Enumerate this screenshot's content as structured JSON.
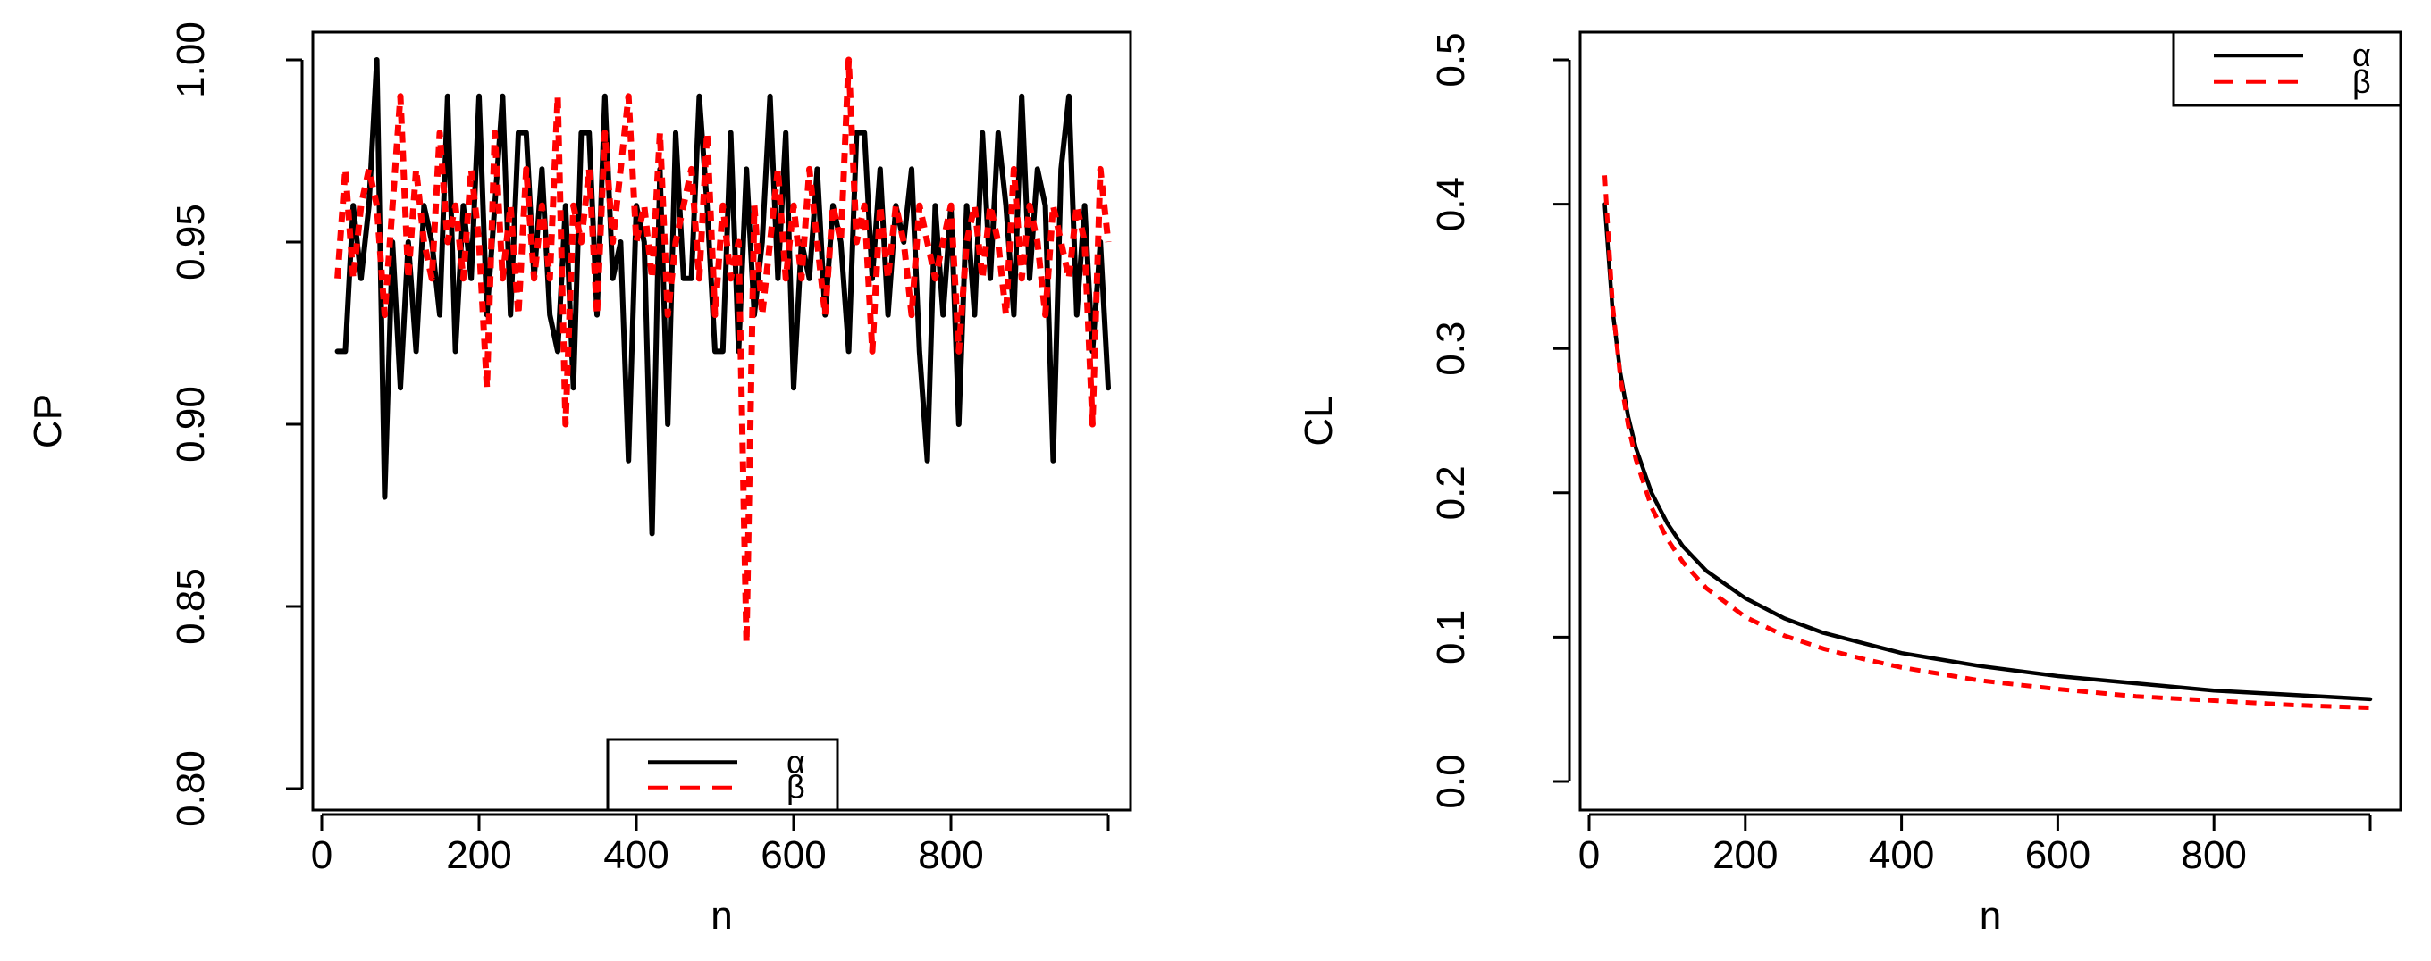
{
  "chart_data": [
    {
      "type": "line",
      "xlabel": "n",
      "ylabel": "CP",
      "xlim": [
        0,
        1000
      ],
      "ylim": [
        0.8,
        1.0
      ],
      "x_ticks": [
        "0",
        "200",
        "400",
        "600",
        "800"
      ],
      "y_ticks": [
        "0.80",
        "0.85",
        "0.90",
        "0.95",
        "1.00"
      ],
      "grid": false,
      "legend_position": "bottom-center",
      "series": [
        {
          "name": "α",
          "color": "#000000",
          "style": "solid",
          "x": [
            20,
            30,
            40,
            50,
            60,
            70,
            80,
            90,
            100,
            110,
            120,
            130,
            140,
            150,
            160,
            170,
            180,
            190,
            200,
            210,
            220,
            230,
            240,
            250,
            260,
            270,
            280,
            290,
            300,
            310,
            320,
            330,
            340,
            350,
            360,
            370,
            380,
            390,
            400,
            410,
            420,
            430,
            440,
            450,
            460,
            470,
            480,
            490,
            500,
            510,
            520,
            530,
            540,
            550,
            560,
            570,
            580,
            590,
            600,
            610,
            620,
            630,
            640,
            650,
            660,
            670,
            680,
            690,
            700,
            710,
            720,
            730,
            740,
            750,
            760,
            770,
            780,
            790,
            800,
            810,
            820,
            830,
            840,
            850,
            860,
            870,
            880,
            890,
            900,
            910,
            920,
            930,
            940,
            950,
            960,
            970,
            980,
            990,
            1000
          ],
          "values": [
            0.92,
            0.92,
            0.96,
            0.94,
            0.96,
            1.0,
            0.88,
            0.95,
            0.91,
            0.95,
            0.92,
            0.96,
            0.95,
            0.93,
            0.99,
            0.92,
            0.96,
            0.94,
            0.99,
            0.93,
            0.96,
            0.99,
            0.93,
            0.98,
            0.98,
            0.94,
            0.97,
            0.93,
            0.92,
            0.96,
            0.91,
            0.98,
            0.98,
            0.93,
            0.99,
            0.94,
            0.95,
            0.89,
            0.96,
            0.95,
            0.87,
            0.97,
            0.9,
            0.98,
            0.94,
            0.94,
            0.99,
            0.96,
            0.92,
            0.92,
            0.98,
            0.92,
            0.97,
            0.93,
            0.95,
            0.99,
            0.94,
            0.98,
            0.91,
            0.95,
            0.94,
            0.97,
            0.93,
            0.96,
            0.95,
            0.92,
            0.98,
            0.98,
            0.94,
            0.97,
            0.93,
            0.96,
            0.95,
            0.97,
            0.92,
            0.89,
            0.96,
            0.93,
            0.96,
            0.9,
            0.96,
            0.93,
            0.98,
            0.94,
            0.98,
            0.96,
            0.93,
            0.99,
            0.94,
            0.97,
            0.96,
            0.89,
            0.97,
            0.99,
            0.93,
            0.96,
            0.92,
            0.95,
            0.91
          ]
        },
        {
          "name": "β",
          "color": "#ff0000",
          "style": "dashed",
          "x": [
            20,
            30,
            40,
            50,
            60,
            70,
            80,
            90,
            100,
            110,
            120,
            130,
            140,
            150,
            160,
            170,
            180,
            190,
            200,
            210,
            220,
            230,
            240,
            250,
            260,
            270,
            280,
            290,
            300,
            310,
            320,
            330,
            340,
            350,
            360,
            370,
            380,
            390,
            400,
            410,
            420,
            430,
            440,
            450,
            460,
            470,
            480,
            490,
            500,
            510,
            520,
            530,
            540,
            550,
            560,
            570,
            580,
            590,
            600,
            610,
            620,
            630,
            640,
            650,
            660,
            670,
            680,
            690,
            700,
            710,
            720,
            730,
            740,
            750,
            760,
            770,
            780,
            790,
            800,
            810,
            820,
            830,
            840,
            850,
            860,
            870,
            880,
            890,
            900,
            910,
            920,
            930,
            940,
            950,
            960,
            970,
            980,
            990,
            1000
          ],
          "values": [
            0.94,
            0.97,
            0.94,
            0.96,
            0.97,
            0.96,
            0.93,
            0.96,
            0.99,
            0.94,
            0.97,
            0.95,
            0.94,
            0.98,
            0.95,
            0.96,
            0.94,
            0.97,
            0.95,
            0.91,
            0.98,
            0.94,
            0.96,
            0.93,
            0.97,
            0.94,
            0.96,
            0.94,
            0.99,
            0.9,
            0.96,
            0.95,
            0.97,
            0.93,
            0.98,
            0.95,
            0.97,
            0.99,
            0.95,
            0.96,
            0.94,
            0.98,
            0.93,
            0.95,
            0.96,
            0.97,
            0.94,
            0.98,
            0.93,
            0.96,
            0.94,
            0.95,
            0.84,
            0.96,
            0.93,
            0.95,
            0.97,
            0.94,
            0.96,
            0.94,
            0.97,
            0.95,
            0.93,
            0.96,
            0.95,
            1.0,
            0.95,
            0.96,
            0.92,
            0.96,
            0.94,
            0.96,
            0.95,
            0.93,
            0.96,
            0.95,
            0.94,
            0.95,
            0.96,
            0.92,
            0.95,
            0.96,
            0.94,
            0.96,
            0.95,
            0.93,
            0.97,
            0.94,
            0.96,
            0.95,
            0.93,
            0.96,
            0.95,
            0.94,
            0.96,
            0.95,
            0.9,
            0.97,
            0.95
          ]
        }
      ]
    },
    {
      "type": "line",
      "xlabel": "n",
      "ylabel": "CL",
      "xlim": [
        0,
        1000
      ],
      "ylim": [
        0.0,
        0.5
      ],
      "x_ticks": [
        "0",
        "200",
        "400",
        "600",
        "800"
      ],
      "y_ticks": [
        "0.0",
        "0.1",
        "0.2",
        "0.3",
        "0.4",
        "0.5"
      ],
      "grid": false,
      "legend_position": "top-right",
      "series": [
        {
          "name": "α",
          "color": "#000000",
          "style": "solid",
          "x": [
            20,
            30,
            40,
            50,
            60,
            80,
            100,
            120,
            150,
            200,
            250,
            300,
            350,
            400,
            500,
            600,
            700,
            800,
            900,
            1000
          ],
          "values": [
            0.4,
            0.327,
            0.283,
            0.253,
            0.231,
            0.2,
            0.179,
            0.163,
            0.146,
            0.127,
            0.113,
            0.103,
            0.096,
            0.089,
            0.08,
            0.073,
            0.068,
            0.063,
            0.06,
            0.057
          ]
        },
        {
          "name": "β",
          "color": "#ff0000",
          "style": "dashed",
          "x": [
            20,
            30,
            40,
            50,
            60,
            80,
            100,
            120,
            150,
            200,
            250,
            300,
            350,
            400,
            500,
            600,
            700,
            800,
            900,
            1000
          ],
          "values": [
            0.42,
            0.331,
            0.28,
            0.247,
            0.223,
            0.19,
            0.168,
            0.152,
            0.134,
            0.114,
            0.101,
            0.092,
            0.085,
            0.079,
            0.07,
            0.064,
            0.059,
            0.056,
            0.053,
            0.051
          ]
        }
      ]
    }
  ]
}
